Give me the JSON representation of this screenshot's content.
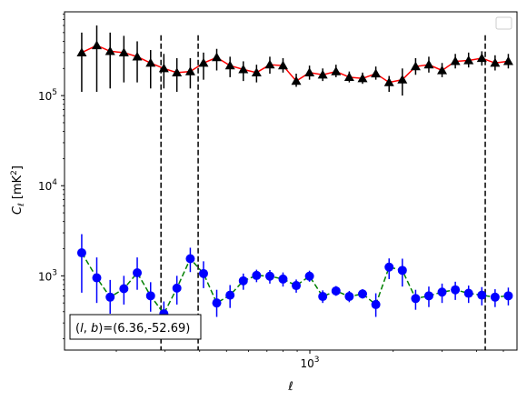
{
  "chart_data": {
    "type": "scatter",
    "title": "",
    "xlabel": "ℓ",
    "ylabel": "Cℓ  [mK²]",
    "xscale": "log",
    "yscale": "log",
    "xlim": [
      130,
      5600
    ],
    "ylim": [
      150,
      850000
    ],
    "grid": false,
    "legend": "top-right (empty)",
    "x_tick_labels": [
      {
        "value": 1000,
        "base": "10",
        "exp": "3"
      }
    ],
    "y_tick_labels": [
      {
        "value": 1000,
        "base": "10",
        "exp": "3"
      },
      {
        "value": 10000,
        "base": "10",
        "exp": "4"
      },
      {
        "value": 100000,
        "base": "10",
        "exp": "5"
      }
    ],
    "vlines": [
      290,
      395,
      4300
    ],
    "annotation": "(l, b)=(6.36,-52.69)",
    "annotation_parts": [
      "(",
      "l",
      ", ",
      "b",
      ")=(6.36,-52.69)"
    ],
    "series": [
      {
        "color": "#ff0000",
        "line_style": "solid",
        "marker": "triangle",
        "marker_color": "#000000",
        "errorbar_color": "#000000",
        "x": [
          150,
          170,
          190,
          213,
          238,
          266,
          297,
          331,
          370,
          413,
          461,
          515,
          575,
          642,
          717,
          800,
          893,
          997,
          1113,
          1243,
          1388,
          1550,
          1731,
          1933,
          2158,
          2410,
          2690,
          3003,
          3353,
          3744,
          4180,
          4667,
          5210
        ],
        "y": [
          300000,
          360000,
          310000,
          300000,
          270000,
          230000,
          200000,
          180000,
          185000,
          230000,
          265000,
          215000,
          195000,
          180000,
          220000,
          215000,
          145000,
          180000,
          170000,
          185000,
          160000,
          155000,
          175000,
          140000,
          150000,
          210000,
          220000,
          190000,
          240000,
          245000,
          260000,
          230000,
          240000
        ],
        "y_err_low": [
          110000,
          110000,
          120000,
          140000,
          140000,
          120000,
          120000,
          110000,
          120000,
          150000,
          190000,
          160000,
          145000,
          140000,
          175000,
          180000,
          125000,
          150000,
          145000,
          160000,
          140000,
          135000,
          150000,
          110000,
          100000,
          170000,
          180000,
          160000,
          200000,
          205000,
          215000,
          190000,
          200000
        ],
        "y_err_high": [
          500000,
          600000,
          500000,
          460000,
          400000,
          320000,
          290000,
          260000,
          260000,
          300000,
          330000,
          270000,
          240000,
          220000,
          270000,
          260000,
          175000,
          215000,
          200000,
          220000,
          185000,
          180000,
          210000,
          165000,
          200000,
          260000,
          270000,
          230000,
          290000,
          300000,
          310000,
          280000,
          290000
        ]
      },
      {
        "color": "#008000",
        "line_style": "dashed",
        "marker": "circle",
        "marker_color": "#0000ff",
        "errorbar_color": "#0000ff",
        "x": [
          150,
          170,
          190,
          213,
          238,
          266,
          297,
          331,
          370,
          413,
          461,
          515,
          575,
          642,
          717,
          800,
          893,
          997,
          1113,
          1243,
          1388,
          1550,
          1731,
          1933,
          2158,
          2410,
          2690,
          3003,
          3353,
          3744,
          4180,
          4667,
          5210
        ],
        "y": [
          1800,
          950,
          580,
          720,
          1080,
          600,
          380,
          730,
          1550,
          1060,
          500,
          610,
          880,
          1010,
          990,
          920,
          780,
          990,
          590,
          680,
          590,
          630,
          480,
          1250,
          1150,
          560,
          600,
          660,
          700,
          640,
          610,
          580,
          600
        ],
        "y_err_low": [
          650,
          500,
          380,
          480,
          700,
          400,
          260,
          480,
          1100,
          730,
          350,
          440,
          700,
          850,
          820,
          760,
          650,
          860,
          500,
          600,
          510,
          560,
          350,
          920,
          760,
          420,
          450,
          500,
          540,
          500,
          470,
          450,
          470
        ],
        "y_err_high": [
          2900,
          1600,
          900,
          1000,
          1600,
          850,
          520,
          1000,
          2050,
          1450,
          700,
          790,
          1060,
          1170,
          1160,
          1090,
          910,
          1140,
          690,
          770,
          680,
          710,
          640,
          1560,
          1550,
          700,
          760,
          820,
          860,
          780,
          750,
          710,
          740
        ]
      }
    ]
  }
}
